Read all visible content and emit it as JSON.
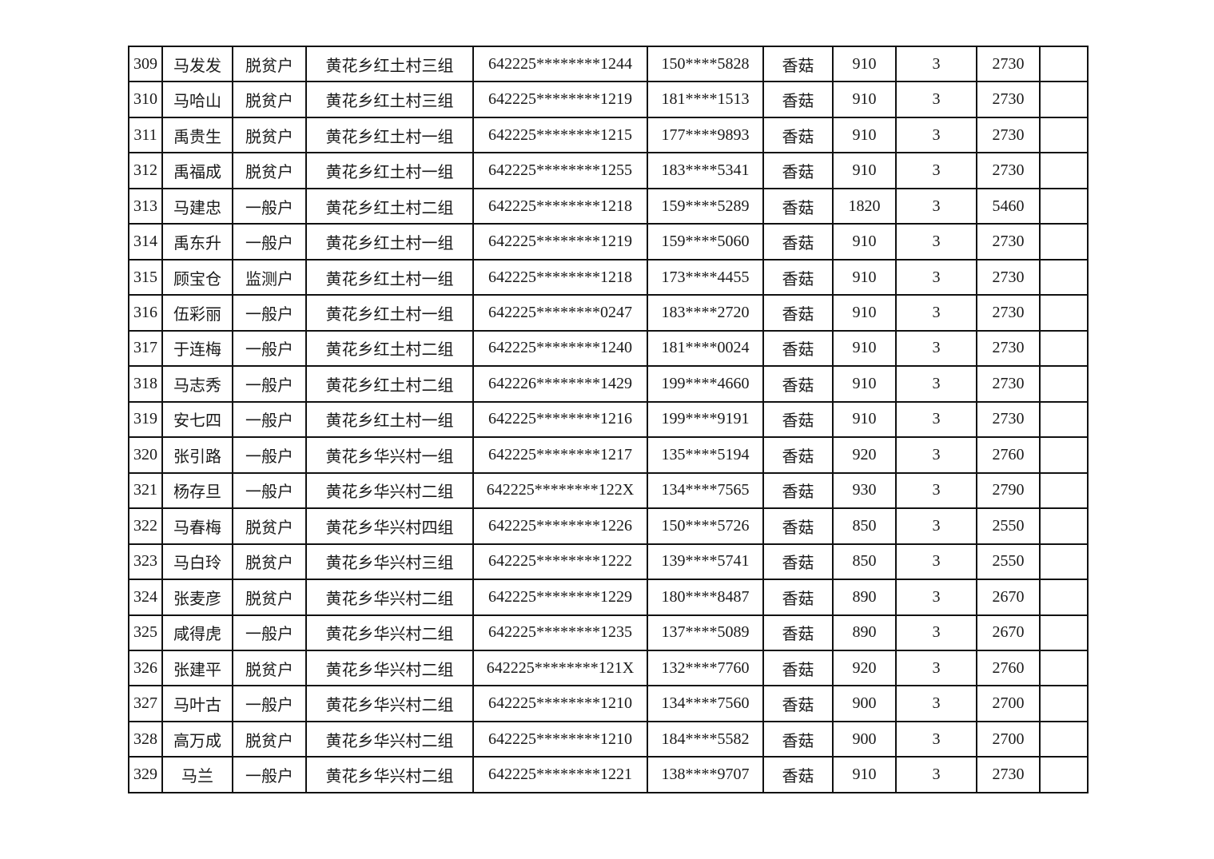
{
  "colors": {
    "page_background": "#ffffff",
    "border": "#111111",
    "text": "#1a1a1a"
  },
  "table": {
    "rows": [
      {
        "seq": "309",
        "name": "马发发",
        "household_type": "脱贫户",
        "address": "黄花乡红土村三组",
        "id_number": "642225********1244",
        "phone": "150****5828",
        "product": "香菇",
        "quantity": "910",
        "count": "3",
        "amount": "2730",
        "note": ""
      },
      {
        "seq": "310",
        "name": "马哈山",
        "household_type": "脱贫户",
        "address": "黄花乡红土村三组",
        "id_number": "642225********1219",
        "phone": "181****1513",
        "product": "香菇",
        "quantity": "910",
        "count": "3",
        "amount": "2730",
        "note": ""
      },
      {
        "seq": "311",
        "name": "禹贵生",
        "household_type": "脱贫户",
        "address": "黄花乡红土村一组",
        "id_number": "642225********1215",
        "phone": "177****9893",
        "product": "香菇",
        "quantity": "910",
        "count": "3",
        "amount": "2730",
        "note": ""
      },
      {
        "seq": "312",
        "name": "禹福成",
        "household_type": "脱贫户",
        "address": "黄花乡红土村一组",
        "id_number": "642225********1255",
        "phone": "183****5341",
        "product": "香菇",
        "quantity": "910",
        "count": "3",
        "amount": "2730",
        "note": ""
      },
      {
        "seq": "313",
        "name": "马建忠",
        "household_type": "一般户",
        "address": "黄花乡红土村二组",
        "id_number": "642225********1218",
        "phone": "159****5289",
        "product": "香菇",
        "quantity": "1820",
        "count": "3",
        "amount": "5460",
        "note": ""
      },
      {
        "seq": "314",
        "name": "禹东升",
        "household_type": "一般户",
        "address": "黄花乡红土村一组",
        "id_number": "642225********1219",
        "phone": "159****5060",
        "product": "香菇",
        "quantity": "910",
        "count": "3",
        "amount": "2730",
        "note": ""
      },
      {
        "seq": "315",
        "name": "顾宝仓",
        "household_type": "监测户",
        "address": "黄花乡红土村一组",
        "id_number": "642225********1218",
        "phone": "173****4455",
        "product": "香菇",
        "quantity": "910",
        "count": "3",
        "amount": "2730",
        "note": ""
      },
      {
        "seq": "316",
        "name": "伍彩丽",
        "household_type": "一般户",
        "address": "黄花乡红土村一组",
        "id_number": "642225********0247",
        "phone": "183****2720",
        "product": "香菇",
        "quantity": "910",
        "count": "3",
        "amount": "2730",
        "note": ""
      },
      {
        "seq": "317",
        "name": "于连梅",
        "household_type": "一般户",
        "address": "黄花乡红土村二组",
        "id_number": "642225********1240",
        "phone": "181****0024",
        "product": "香菇",
        "quantity": "910",
        "count": "3",
        "amount": "2730",
        "note": ""
      },
      {
        "seq": "318",
        "name": "马志秀",
        "household_type": "一般户",
        "address": "黄花乡红土村二组",
        "id_number": "642226********1429",
        "phone": "199****4660",
        "product": "香菇",
        "quantity": "910",
        "count": "3",
        "amount": "2730",
        "note": ""
      },
      {
        "seq": "319",
        "name": "安七四",
        "household_type": "一般户",
        "address": "黄花乡红土村一组",
        "id_number": "642225********1216",
        "phone": "199****9191",
        "product": "香菇",
        "quantity": "910",
        "count": "3",
        "amount": "2730",
        "note": ""
      },
      {
        "seq": "320",
        "name": "张引路",
        "household_type": "一般户",
        "address": "黄花乡华兴村一组",
        "id_number": "642225********1217",
        "phone": "135****5194",
        "product": "香菇",
        "quantity": "920",
        "count": "3",
        "amount": "2760",
        "note": ""
      },
      {
        "seq": "321",
        "name": "杨存旦",
        "household_type": "一般户",
        "address": "黄花乡华兴村二组",
        "id_number": "642225********122X",
        "phone": "134****7565",
        "product": "香菇",
        "quantity": "930",
        "count": "3",
        "amount": "2790",
        "note": ""
      },
      {
        "seq": "322",
        "name": "马春梅",
        "household_type": "脱贫户",
        "address": "黄花乡华兴村四组",
        "id_number": "642225********1226",
        "phone": "150****5726",
        "product": "香菇",
        "quantity": "850",
        "count": "3",
        "amount": "2550",
        "note": ""
      },
      {
        "seq": "323",
        "name": "马白玲",
        "household_type": "脱贫户",
        "address": "黄花乡华兴村三组",
        "id_number": "642225********1222",
        "phone": "139****5741",
        "product": "香菇",
        "quantity": "850",
        "count": "3",
        "amount": "2550",
        "note": ""
      },
      {
        "seq": "324",
        "name": "张麦彦",
        "household_type": "脱贫户",
        "address": "黄花乡华兴村二组",
        "id_number": "642225********1229",
        "phone": "180****8487",
        "product": "香菇",
        "quantity": "890",
        "count": "3",
        "amount": "2670",
        "note": ""
      },
      {
        "seq": "325",
        "name": "咸得虎",
        "household_type": "一般户",
        "address": "黄花乡华兴村二组",
        "id_number": "642225********1235",
        "phone": "137****5089",
        "product": "香菇",
        "quantity": "890",
        "count": "3",
        "amount": "2670",
        "note": ""
      },
      {
        "seq": "326",
        "name": "张建平",
        "household_type": "脱贫户",
        "address": "黄花乡华兴村二组",
        "id_number": "642225********121X",
        "phone": "132****7760",
        "product": "香菇",
        "quantity": "920",
        "count": "3",
        "amount": "2760",
        "note": ""
      },
      {
        "seq": "327",
        "name": "马叶古",
        "household_type": "一般户",
        "address": "黄花乡华兴村二组",
        "id_number": "642225********1210",
        "phone": "134****7560",
        "product": "香菇",
        "quantity": "900",
        "count": "3",
        "amount": "2700",
        "note": ""
      },
      {
        "seq": "328",
        "name": "高万成",
        "household_type": "脱贫户",
        "address": "黄花乡华兴村二组",
        "id_number": "642225********1210",
        "phone": "184****5582",
        "product": "香菇",
        "quantity": "900",
        "count": "3",
        "amount": "2700",
        "note": ""
      },
      {
        "seq": "329",
        "name": "马兰",
        "household_type": "一般户",
        "address": "黄花乡华兴村二组",
        "id_number": "642225********1221",
        "phone": "138****9707",
        "product": "香菇",
        "quantity": "910",
        "count": "3",
        "amount": "2730",
        "note": ""
      }
    ]
  }
}
